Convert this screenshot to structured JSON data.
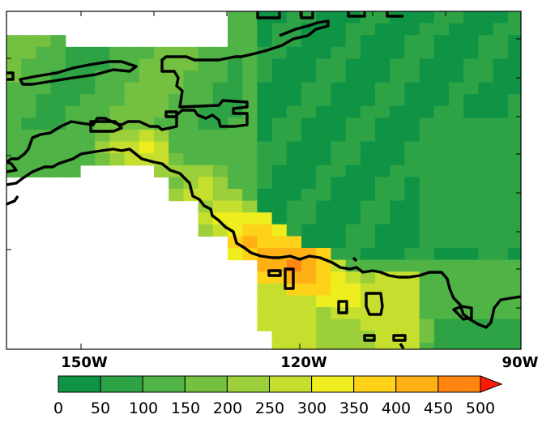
{
  "map": {
    "x_axis": {
      "tick_labels": [
        "150W",
        "120W",
        "90W"
      ]
    },
    "colorbar": {
      "tick_labels": [
        "0",
        "50",
        "100",
        "150",
        "200",
        "250",
        "300",
        "350",
        "400",
        "450",
        "500"
      ],
      "colors": [
        "#0f9345",
        "#2ea346",
        "#4fb345",
        "#74c141",
        "#9bd03a",
        "#c6df2f",
        "#eeee1f",
        "#ffd21a",
        "#ffb015",
        "#ff8410",
        "#ff4a0a",
        "#ff1a06"
      ],
      "extend": "max"
    },
    "palette": {
      "coast_stroke": "#000000",
      "frame_stroke": "#000000",
      "missing": "#ffffff"
    }
  }
}
